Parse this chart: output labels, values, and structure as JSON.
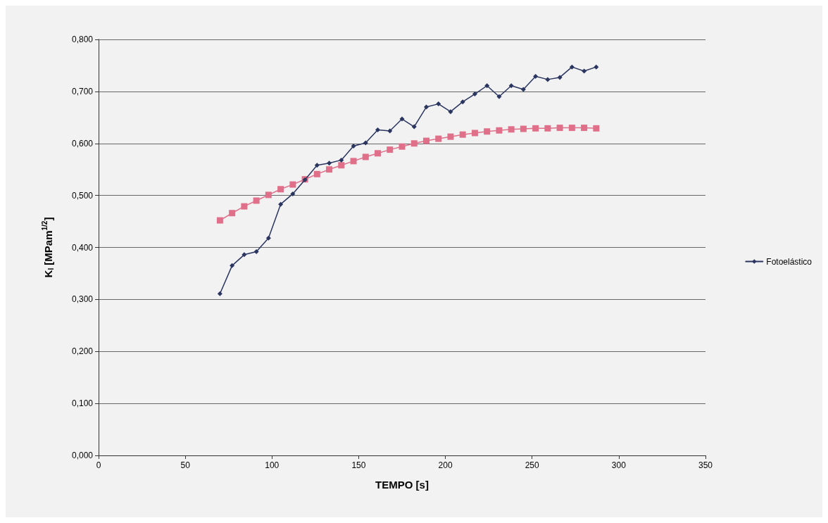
{
  "chart_data": {
    "type": "line",
    "xlabel": "TEMPO [s]",
    "ylabel": "K$_{I}$ [MPam$^{1/2}$]",
    "xlim": [
      0,
      350
    ],
    "xticks": [
      0,
      50,
      100,
      150,
      200,
      250,
      300,
      350
    ],
    "ylim": [
      0,
      0.8
    ],
    "yticks": [
      {
        "value": 0,
        "label": "0,000"
      },
      {
        "value": 0.1,
        "label": "0,100"
      },
      {
        "value": 0.2,
        "label": "0,200"
      },
      {
        "value": 0.3,
        "label": "0,300"
      },
      {
        "value": 0.4,
        "label": "0,400"
      },
      {
        "value": 0.5,
        "label": "0,500"
      },
      {
        "value": 0.6,
        "label": "0,600"
      },
      {
        "value": 0.7,
        "label": "0,700"
      },
      {
        "value": 0.8,
        "label": "0,800"
      }
    ],
    "grid": "y",
    "legend": "right",
    "line_style": "solid",
    "x": [
      70,
      77,
      84,
      91,
      98,
      105,
      112,
      119,
      126,
      133,
      140,
      147,
      154,
      161,
      168,
      175,
      182,
      189,
      196,
      203,
      210,
      217,
      224,
      231,
      238,
      245,
      252,
      259,
      266,
      273,
      280,
      287
    ],
    "series": [
      {
        "name": "Fotoelástico",
        "color": "#2a3560",
        "marker": "diamond",
        "values": [
          0.311,
          0.365,
          0.386,
          0.392,
          0.418,
          0.483,
          0.503,
          0.53,
          0.558,
          0.562,
          0.568,
          0.595,
          0.601,
          0.626,
          0.624,
          0.647,
          0.632,
          0.67,
          0.676,
          0.661,
          0.68,
          0.695,
          0.711,
          0.69,
          0.711,
          0.704,
          0.729,
          0.723,
          0.727,
          0.747,
          0.739,
          0.747
        ]
      },
      {
        "color": "#e0708a",
        "marker": "square",
        "values": [
          0.452,
          0.466,
          0.479,
          0.49,
          0.501,
          0.512,
          0.521,
          0.531,
          0.541,
          0.55,
          0.558,
          0.566,
          0.574,
          0.581,
          0.588,
          0.594,
          0.6,
          0.605,
          0.609,
          0.613,
          0.617,
          0.62,
          0.623,
          0.625,
          0.627,
          0.628,
          0.629,
          0.629,
          0.63,
          0.63,
          0.63,
          0.629
        ]
      }
    ]
  }
}
